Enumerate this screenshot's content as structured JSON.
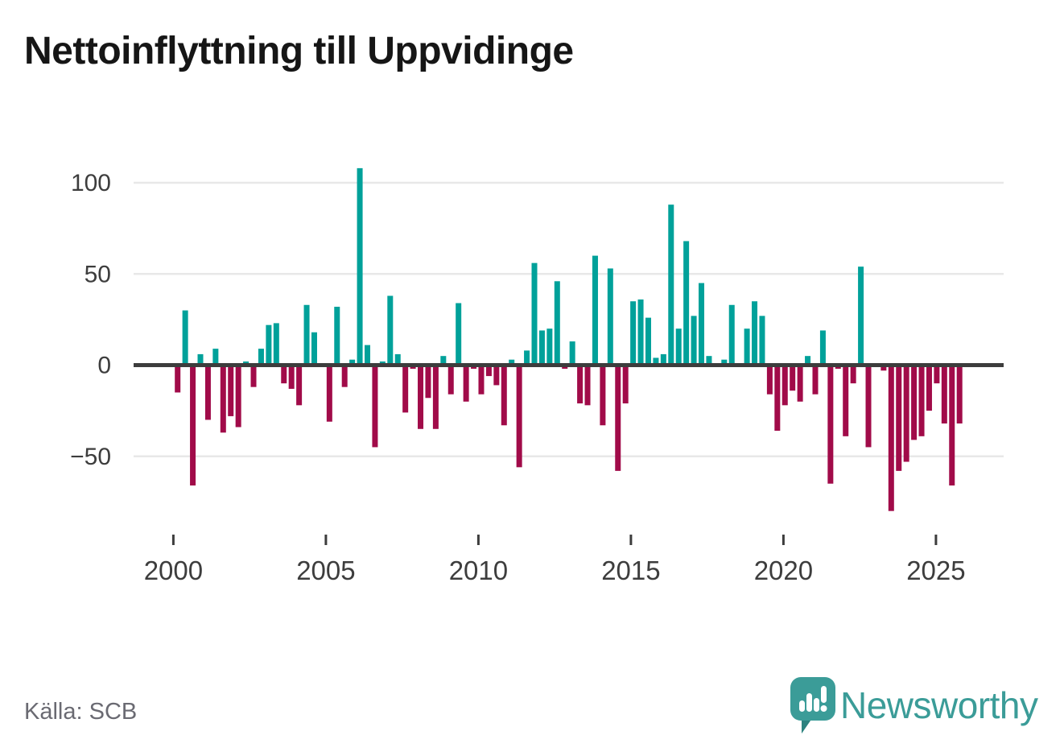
{
  "header": {
    "title": "Nettoinflyttning till Uppvidinge"
  },
  "footer": {
    "source": "Källa: SCB",
    "brand": "Newsworthy"
  },
  "chart_data": {
    "type": "bar",
    "title": "Nettoinflyttning till Uppvidinge",
    "x_unit": "quarter",
    "start": "2000-Q1",
    "end": "2025-Q4",
    "quarters": [
      "2000-Q1",
      "2000-Q2",
      "2000-Q3",
      "2000-Q4",
      "2001-Q1",
      "2001-Q2",
      "2001-Q3",
      "2001-Q4",
      "2002-Q1",
      "2002-Q2",
      "2002-Q3",
      "2002-Q4",
      "2003-Q1",
      "2003-Q2",
      "2003-Q3",
      "2003-Q4",
      "2004-Q1",
      "2004-Q2",
      "2004-Q3",
      "2004-Q4",
      "2005-Q1",
      "2005-Q2",
      "2005-Q3",
      "2005-Q4",
      "2006-Q1",
      "2006-Q2",
      "2006-Q3",
      "2006-Q4",
      "2007-Q1",
      "2007-Q2",
      "2007-Q3",
      "2007-Q4",
      "2008-Q1",
      "2008-Q2",
      "2008-Q3",
      "2008-Q4",
      "2009-Q1",
      "2009-Q2",
      "2009-Q3",
      "2009-Q4",
      "2010-Q1",
      "2010-Q2",
      "2010-Q3",
      "2010-Q4",
      "2011-Q1",
      "2011-Q2",
      "2011-Q3",
      "2011-Q4",
      "2012-Q1",
      "2012-Q2",
      "2012-Q3",
      "2012-Q4",
      "2013-Q1",
      "2013-Q2",
      "2013-Q3",
      "2013-Q4",
      "2014-Q1",
      "2014-Q2",
      "2014-Q3",
      "2014-Q4",
      "2015-Q1",
      "2015-Q2",
      "2015-Q3",
      "2015-Q4",
      "2016-Q1",
      "2016-Q2",
      "2016-Q3",
      "2016-Q4",
      "2017-Q1",
      "2017-Q2",
      "2017-Q3",
      "2017-Q4",
      "2018-Q1",
      "2018-Q2",
      "2018-Q3",
      "2018-Q4",
      "2019-Q1",
      "2019-Q2",
      "2019-Q3",
      "2019-Q4",
      "2020-Q1",
      "2020-Q2",
      "2020-Q3",
      "2020-Q4",
      "2021-Q1",
      "2021-Q2",
      "2021-Q3",
      "2021-Q4",
      "2022-Q1",
      "2022-Q2",
      "2022-Q3",
      "2022-Q4",
      "2023-Q1",
      "2023-Q2",
      "2023-Q3",
      "2023-Q4",
      "2024-Q1",
      "2024-Q2",
      "2024-Q3",
      "2024-Q4",
      "2025-Q1",
      "2025-Q2",
      "2025-Q3",
      "2025-Q4"
    ],
    "values": [
      -15,
      30,
      -66,
      6,
      -30,
      9,
      -37,
      -28,
      -34,
      2,
      -12,
      9,
      22,
      23,
      -10,
      -13,
      -22,
      33,
      18,
      0,
      -31,
      32,
      -12,
      3,
      108,
      11,
      -45,
      2,
      38,
      6,
      -26,
      -2,
      -35,
      -18,
      -35,
      5,
      -16,
      34,
      -20,
      -2,
      -16,
      -6,
      -11,
      -33,
      3,
      -56,
      8,
      56,
      19,
      20,
      46,
      -2,
      13,
      -21,
      -22,
      60,
      -33,
      53,
      -58,
      -21,
      35,
      36,
      26,
      4,
      6,
      88,
      20,
      68,
      27,
      45,
      5,
      1,
      3,
      33,
      1,
      20,
      35,
      27,
      -16,
      -36,
      -22,
      -14,
      -20,
      5,
      -16,
      19,
      -65,
      -2,
      -39,
      -10,
      54,
      -45,
      0,
      -3,
      -80,
      -58,
      -53,
      -41,
      -39,
      -25,
      -10,
      -32,
      -66,
      -32
    ],
    "xtick_years": [
      2000,
      2005,
      2010,
      2015,
      2020,
      2025
    ],
    "ytick_values": [
      100,
      50,
      0,
      -50
    ],
    "ytick_labels": [
      "100",
      "50",
      "0",
      "−50"
    ],
    "ylim": [
      -90,
      115
    ],
    "grid": true,
    "legend_position": "none",
    "colors": {
      "positive": "#00a19a",
      "negative": "#a10b49",
      "axis": "#3d3d3d",
      "grid": "#e8e8e8",
      "tick_label": "#3d3d3d",
      "brand_teal": "#3b9c98",
      "brand_teal_dark": "#2d827f"
    }
  }
}
